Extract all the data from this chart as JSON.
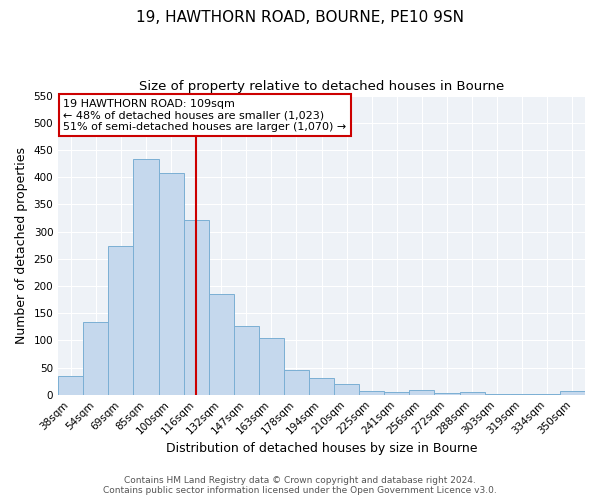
{
  "title": "19, HAWTHORN ROAD, BOURNE, PE10 9SN",
  "subtitle": "Size of property relative to detached houses in Bourne",
  "xlabel": "Distribution of detached houses by size in Bourne",
  "ylabel": "Number of detached properties",
  "footnote1": "Contains HM Land Registry data © Crown copyright and database right 2024.",
  "footnote2": "Contains public sector information licensed under the Open Government Licence v3.0.",
  "bar_labels": [
    "38sqm",
    "54sqm",
    "69sqm",
    "85sqm",
    "100sqm",
    "116sqm",
    "132sqm",
    "147sqm",
    "163sqm",
    "178sqm",
    "194sqm",
    "210sqm",
    "225sqm",
    "241sqm",
    "256sqm",
    "272sqm",
    "288sqm",
    "303sqm",
    "319sqm",
    "334sqm",
    "350sqm"
  ],
  "bar_values": [
    35,
    133,
    273,
    433,
    407,
    322,
    185,
    127,
    104,
    45,
    30,
    20,
    7,
    5,
    8,
    4,
    5,
    2,
    2,
    2,
    6
  ],
  "ylim": [
    0,
    550
  ],
  "yticks": [
    0,
    50,
    100,
    150,
    200,
    250,
    300,
    350,
    400,
    450,
    500,
    550
  ],
  "bar_color": "#c5d8ed",
  "bar_edge_color": "#7bafd4",
  "vline_x": 5.0,
  "vline_color": "#cc0000",
  "annotation_text": "19 HAWTHORN ROAD: 109sqm\n← 48% of detached houses are smaller (1,023)\n51% of semi-detached houses are larger (1,070) →",
  "annotation_box_color": "#ffffff",
  "annotation_box_edge": "#cc0000",
  "background_color": "#eef2f7",
  "grid_color": "#ffffff",
  "title_fontsize": 11,
  "subtitle_fontsize": 9.5,
  "label_fontsize": 9,
  "tick_fontsize": 7.5,
  "annotation_fontsize": 8,
  "footnote_fontsize": 6.5
}
